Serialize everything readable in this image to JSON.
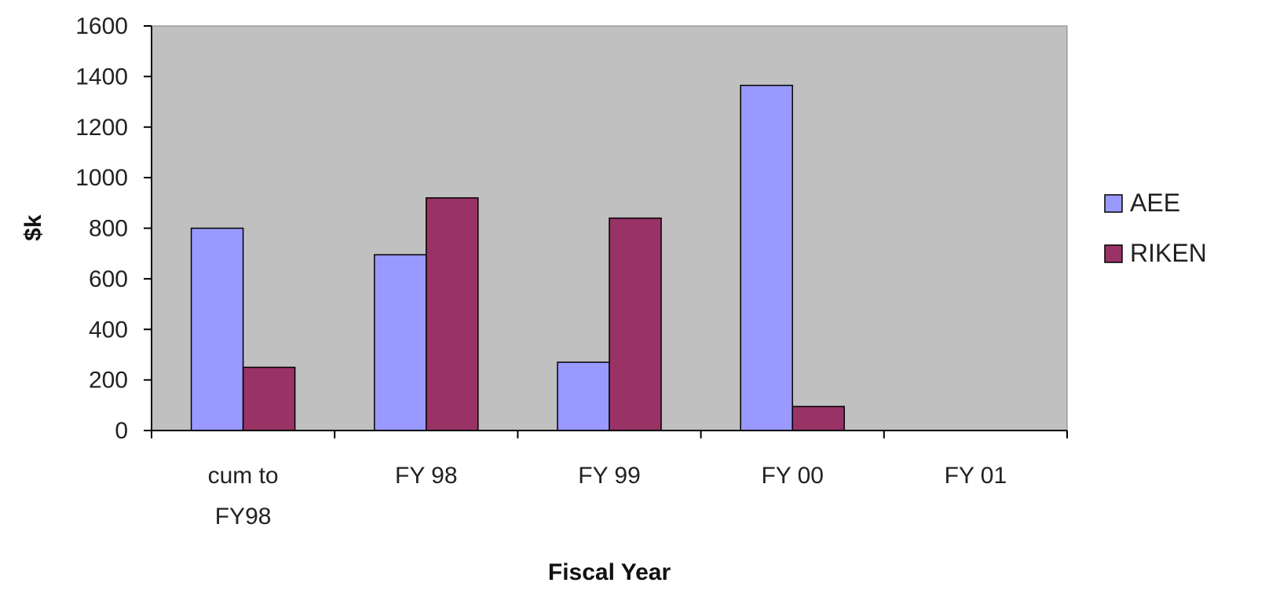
{
  "chart_data": {
    "type": "bar",
    "title": "",
    "xlabel": "Fiscal Year",
    "ylabel": "$k",
    "ylim": [
      0,
      1600
    ],
    "yticks": [
      0,
      200,
      400,
      600,
      800,
      1000,
      1200,
      1400,
      1600
    ],
    "categories": [
      [
        "cum to",
        "FY98"
      ],
      [
        "FY 98"
      ],
      [
        "FY 99"
      ],
      [
        "FY 00"
      ],
      [
        "FY 01"
      ]
    ],
    "series": [
      {
        "name": "AEE",
        "color": "#9999ff",
        "values": [
          800,
          695,
          270,
          1365,
          null
        ]
      },
      {
        "name": "RIKEN",
        "color": "#993366",
        "values": [
          250,
          920,
          840,
          95,
          null
        ]
      }
    ],
    "plot_background": "#c0c0c0",
    "grid": false,
    "legend_position": "right"
  }
}
